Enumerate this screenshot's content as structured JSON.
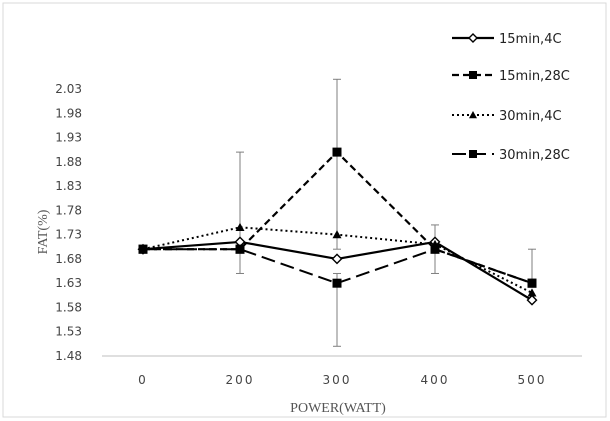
{
  "chart_data": {
    "type": "line",
    "title": "",
    "xlabel": "POWER(WATT)",
    "ylabel": "FAT(%)",
    "categories": [
      "0",
      "200",
      "300",
      "400",
      "500"
    ],
    "ylim": [
      1.48,
      2.06
    ],
    "yticks": [
      "2.03",
      "1.98",
      "1.93",
      "1.88",
      "1.83",
      "1.78",
      "1.73",
      "1.68",
      "1.63",
      "1.58",
      "1.53",
      "1.48"
    ],
    "grid": false,
    "legend_position": "right",
    "series": [
      {
        "name": "15min,4C",
        "values": [
          1.7,
          1.715,
          1.68,
          1.715,
          1.595
        ],
        "line_style": "solid",
        "marker": "diamond-open",
        "color": "#000000"
      },
      {
        "name": "15min,28C",
        "values": [
          1.7,
          1.7,
          1.9,
          1.7,
          1.63
        ],
        "line_style": "short-dash",
        "marker": "square",
        "color": "#000000",
        "error_low": [
          null,
          1.65,
          1.7,
          1.65,
          null
        ],
        "error_high": [
          null,
          1.9,
          2.05,
          1.75,
          1.7
        ]
      },
      {
        "name": "30min,4C",
        "values": [
          1.7,
          1.745,
          1.73,
          1.71,
          1.61
        ],
        "line_style": "dotted",
        "marker": "triangle",
        "color": "#000000"
      },
      {
        "name": "30min,28C",
        "values": [
          1.7,
          1.7,
          1.63,
          1.7,
          1.63
        ],
        "line_style": "long-dash",
        "marker": "square",
        "color": "#000000",
        "error_low": [
          null,
          null,
          1.5,
          null,
          null
        ],
        "error_high": [
          null,
          null,
          1.65,
          null,
          null
        ]
      }
    ]
  }
}
